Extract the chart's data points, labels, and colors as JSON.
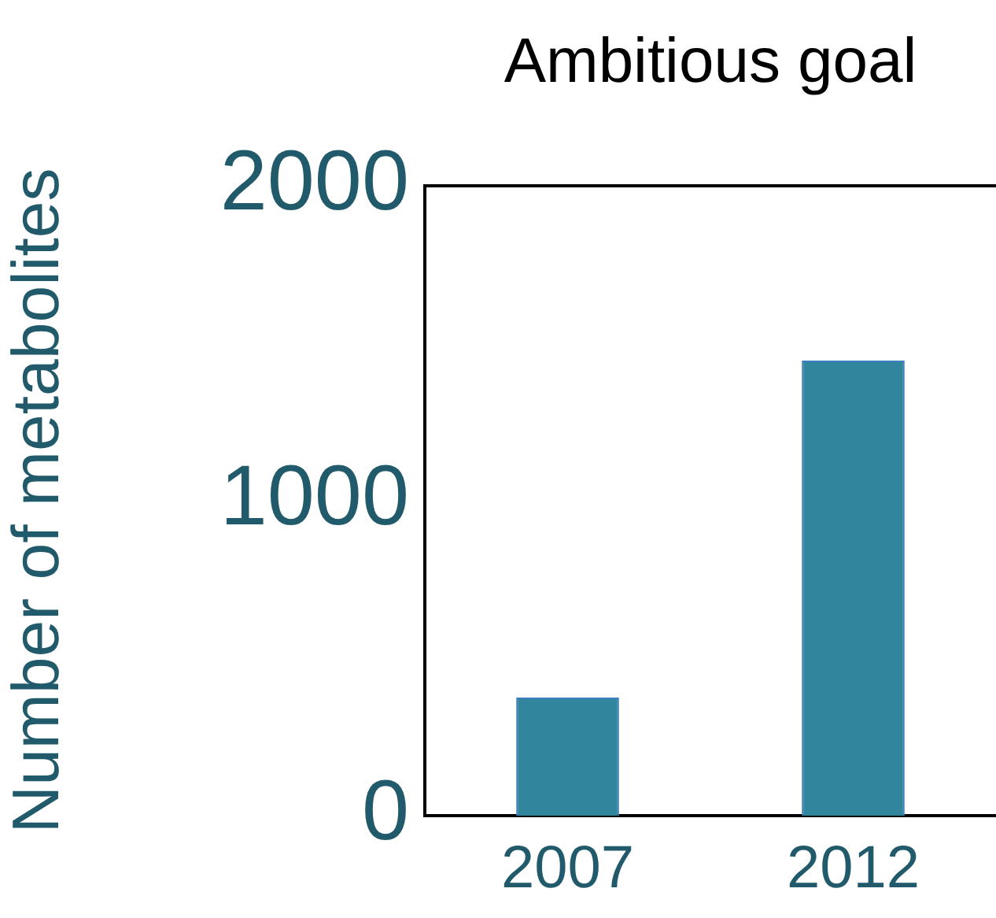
{
  "chart_data": {
    "type": "bar",
    "title": "Ambitious goal",
    "ylabel": "Number of metabolites",
    "categories": [
      "2007",
      "2012"
    ],
    "values": [
      375,
      1445
    ],
    "color": "#31869e",
    "ylim": [
      0,
      2000
    ],
    "yticks": [
      0,
      1000,
      2000
    ],
    "grid": false
  }
}
